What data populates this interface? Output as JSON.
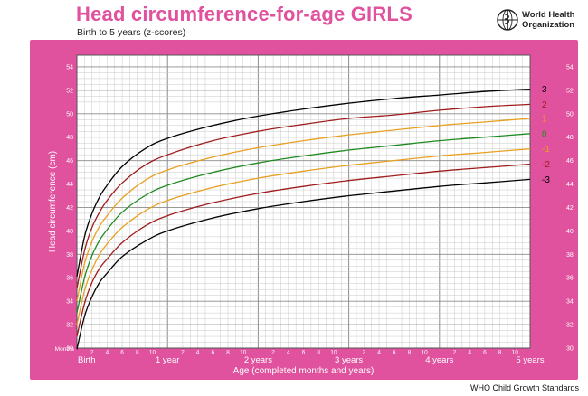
{
  "header": {
    "title": "Head circumference-for-age  GIRLS",
    "subtitle": "Birth to 5 years (z-scores)",
    "logo_line1": "World Health",
    "logo_line2": "Organization"
  },
  "footer": {
    "source": "WHO Child Growth Standards"
  },
  "colors": {
    "frame": "#e0519e",
    "grid_minor": "#c8c8c8",
    "grid_major": "#8c8c8c",
    "z0": "#1f8a1f",
    "z1": "#e8a020",
    "z2": "#a01c1c",
    "z3": "#000000"
  },
  "chart_data": {
    "type": "line",
    "title": "Head circumference-for-age  GIRLS",
    "subtitle": "Birth to 5 years (z-scores)",
    "xlabel": "Age (completed months and years)",
    "ylabel": "Head circumference (cm)",
    "xlim": [
      0,
      60
    ],
    "ylim": [
      30,
      55
    ],
    "x_unit_label": "Months",
    "y_ticks": [
      30,
      32,
      34,
      36,
      38,
      40,
      42,
      44,
      46,
      48,
      50,
      52,
      54
    ],
    "x_tick_labels": [
      {
        "x": 0,
        "label": "Birth"
      },
      {
        "x": 2,
        "label": "2"
      },
      {
        "x": 4,
        "label": "4"
      },
      {
        "x": 6,
        "label": "6"
      },
      {
        "x": 8,
        "label": "8"
      },
      {
        "x": 10,
        "label": "10"
      },
      {
        "x": 14,
        "label": "2"
      },
      {
        "x": 16,
        "label": "4"
      },
      {
        "x": 18,
        "label": "6"
      },
      {
        "x": 20,
        "label": "8"
      },
      {
        "x": 22,
        "label": "10"
      },
      {
        "x": 26,
        "label": "2"
      },
      {
        "x": 28,
        "label": "4"
      },
      {
        "x": 30,
        "label": "6"
      },
      {
        "x": 32,
        "label": "8"
      },
      {
        "x": 34,
        "label": "10"
      },
      {
        "x": 38,
        "label": "2"
      },
      {
        "x": 40,
        "label": "4"
      },
      {
        "x": 42,
        "label": "6"
      },
      {
        "x": 44,
        "label": "8"
      },
      {
        "x": 46,
        "label": "10"
      },
      {
        "x": 50,
        "label": "2"
      },
      {
        "x": 52,
        "label": "4"
      },
      {
        "x": 54,
        "label": "6"
      },
      {
        "x": 56,
        "label": "8"
      },
      {
        "x": 58,
        "label": "10"
      }
    ],
    "year_labels": [
      {
        "x": 12,
        "label": "1 year"
      },
      {
        "x": 24,
        "label": "2 years"
      },
      {
        "x": 36,
        "label": "3 years"
      },
      {
        "x": 48,
        "label": "4 years"
      },
      {
        "x": 60,
        "label": "5 years"
      }
    ],
    "grid": true,
    "legend": "right-side line labels",
    "x": [
      0,
      1,
      2,
      3,
      4,
      6,
      9,
      12,
      18,
      24,
      30,
      36,
      42,
      48,
      54,
      60
    ],
    "series": [
      {
        "name": "3",
        "color": "#000000",
        "values": [
          36.1,
          39.5,
          41.5,
          42.9,
          43.9,
          45.5,
          47.0,
          47.9,
          49.0,
          49.8,
          50.4,
          50.9,
          51.3,
          51.6,
          51.9,
          52.1
        ]
      },
      {
        "name": "2",
        "color": "#a01c1c",
        "values": [
          35.1,
          38.3,
          40.3,
          41.6,
          42.6,
          44.1,
          45.6,
          46.5,
          47.7,
          48.5,
          49.1,
          49.6,
          49.9,
          50.3,
          50.6,
          50.8
        ]
      },
      {
        "name": "1",
        "color": "#e8a020",
        "values": [
          34.0,
          37.2,
          39.1,
          40.4,
          41.3,
          42.8,
          44.3,
          45.2,
          46.3,
          47.1,
          47.7,
          48.2,
          48.6,
          49.0,
          49.3,
          49.6
        ]
      },
      {
        "name": "0",
        "color": "#1f8a1f",
        "values": [
          33.0,
          36.0,
          37.9,
          39.2,
          40.1,
          41.6,
          43.0,
          43.9,
          45.0,
          45.8,
          46.4,
          46.9,
          47.3,
          47.7,
          48.0,
          48.3
        ]
      },
      {
        "name": "-1",
        "color": "#e8a020",
        "values": [
          32.0,
          34.9,
          36.7,
          38.0,
          38.9,
          40.3,
          41.7,
          42.6,
          43.7,
          44.5,
          45.1,
          45.6,
          46.0,
          46.4,
          46.7,
          47.0
        ]
      },
      {
        "name": "-2",
        "color": "#a01c1c",
        "values": [
          31.0,
          33.8,
          35.6,
          36.8,
          37.6,
          39.0,
          40.4,
          41.3,
          42.4,
          43.2,
          43.8,
          44.3,
          44.7,
          45.1,
          45.4,
          45.7
        ]
      },
      {
        "name": "-3",
        "color": "#000000",
        "values": [
          29.9,
          32.7,
          34.4,
          35.6,
          36.4,
          37.8,
          39.1,
          40.0,
          41.1,
          41.9,
          42.5,
          43.0,
          43.4,
          43.8,
          44.1,
          44.4
        ]
      }
    ]
  }
}
